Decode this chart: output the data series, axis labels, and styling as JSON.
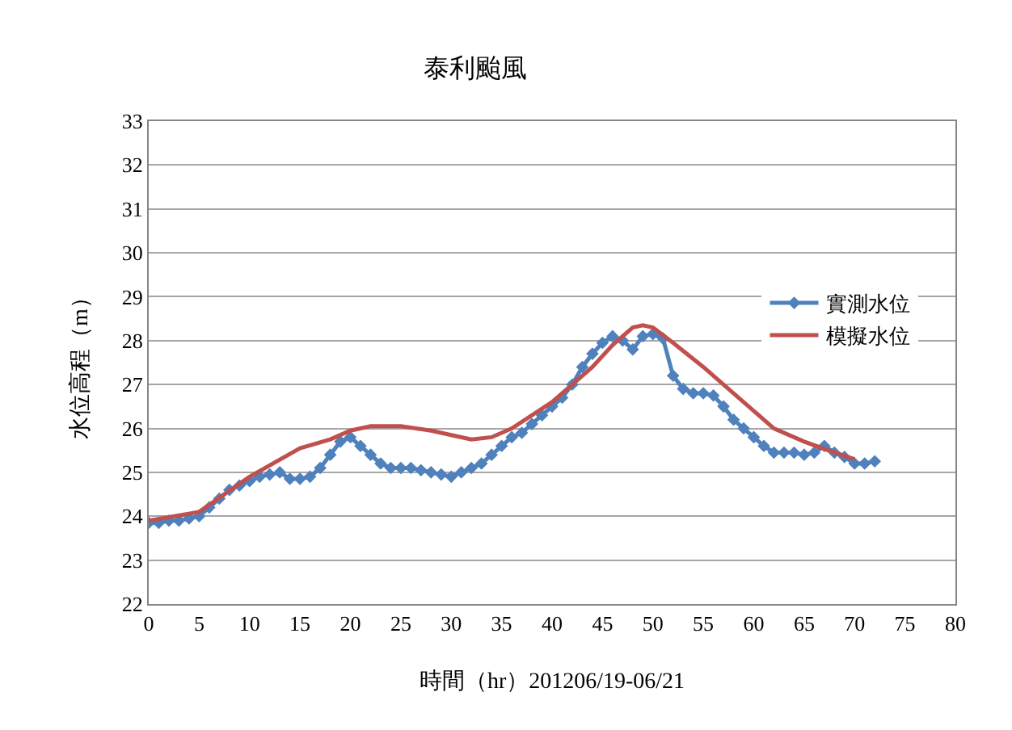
{
  "chart_data": {
    "type": "line",
    "title": "泰利颱風",
    "xlabel": "時間（hr）201206/19-06/21",
    "ylabel": "水位高程（m）",
    "xlim": [
      0,
      80
    ],
    "xticks": [
      0,
      5,
      10,
      15,
      20,
      25,
      30,
      35,
      40,
      45,
      50,
      55,
      60,
      65,
      70,
      75,
      80
    ],
    "ylim": [
      22,
      33
    ],
    "yticks": [
      22,
      23,
      24,
      25,
      26,
      27,
      28,
      29,
      30,
      31,
      32,
      33
    ],
    "grid": "y",
    "legend": "right",
    "series": [
      {
        "name": "實測水位",
        "color": "#4f81bd",
        "marker": "diamond",
        "x": [
          0,
          1,
          2,
          3,
          4,
          5,
          6,
          7,
          8,
          9,
          10,
          11,
          12,
          13,
          14,
          15,
          16,
          17,
          18,
          19,
          20,
          21,
          22,
          23,
          24,
          25,
          26,
          27,
          28,
          29,
          30,
          31,
          32,
          33,
          34,
          35,
          36,
          37,
          38,
          39,
          40,
          41,
          42,
          43,
          44,
          45,
          46,
          47,
          48,
          49,
          50,
          51,
          52,
          53,
          54,
          55,
          56,
          57,
          58,
          59,
          60,
          61,
          62,
          63,
          64,
          65,
          66,
          67,
          68,
          69,
          70,
          71,
          72
        ],
        "values": [
          23.85,
          23.85,
          23.9,
          23.9,
          23.95,
          24.0,
          24.2,
          24.4,
          24.6,
          24.7,
          24.8,
          24.9,
          24.95,
          25.0,
          24.85,
          24.85,
          24.9,
          25.1,
          25.4,
          25.7,
          25.8,
          25.6,
          25.4,
          25.2,
          25.1,
          25.1,
          25.1,
          25.05,
          25.0,
          24.95,
          24.9,
          25.0,
          25.1,
          25.2,
          25.4,
          25.6,
          25.8,
          25.9,
          26.1,
          26.3,
          26.5,
          26.7,
          27.0,
          27.4,
          27.7,
          27.95,
          28.1,
          28.0,
          27.8,
          28.1,
          28.15,
          28.05,
          27.2,
          26.9,
          26.8,
          26.8,
          26.75,
          26.5,
          26.2,
          26.0,
          25.8,
          25.6,
          25.45,
          25.45,
          25.45,
          25.4,
          25.45,
          25.6,
          25.45,
          25.35,
          25.2,
          25.2,
          25.25
        ]
      },
      {
        "name": "模擬水位",
        "color": "#c0504d",
        "marker": "none",
        "x": [
          0,
          5,
          10,
          15,
          18,
          20,
          22,
          25,
          28,
          30,
          32,
          34,
          36,
          40,
          44,
          46,
          48,
          49,
          50,
          52,
          55,
          58,
          60,
          62,
          65,
          68,
          70
        ],
        "values": [
          23.9,
          24.1,
          24.9,
          25.55,
          25.75,
          25.95,
          26.05,
          26.05,
          25.95,
          25.85,
          25.75,
          25.8,
          26.0,
          26.6,
          27.4,
          27.9,
          28.3,
          28.35,
          28.3,
          27.95,
          27.4,
          26.8,
          26.4,
          26.0,
          25.7,
          25.45,
          25.3
        ]
      }
    ]
  }
}
